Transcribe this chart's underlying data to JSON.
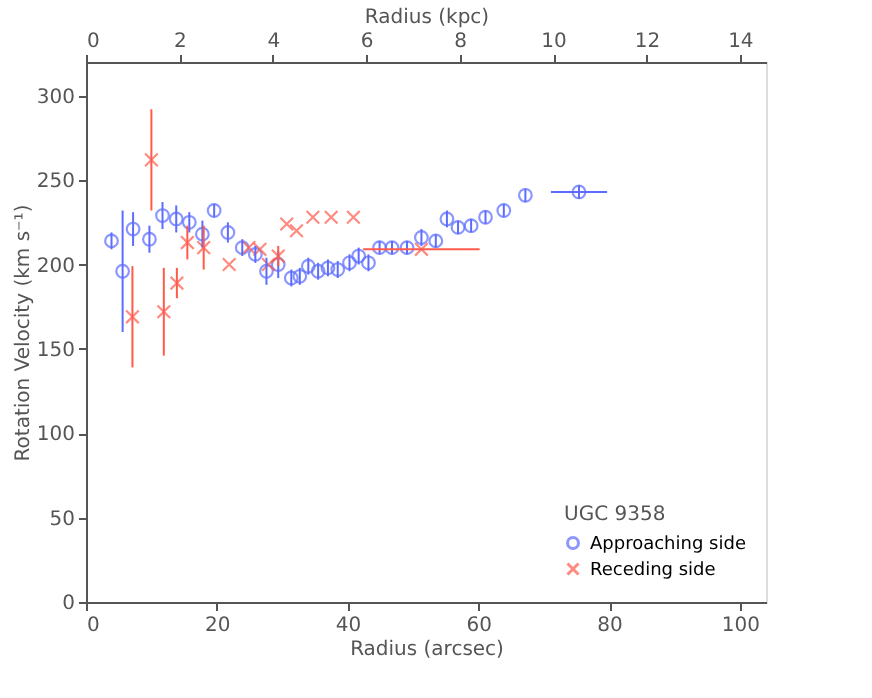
{
  "chart_data": {
    "type": "scatter",
    "xlabel": "Radius (arcsec)",
    "ylabel": "Rotation Velocity (km s⁻¹)",
    "x2label": "Radius (kpc)",
    "legend_title": "UGC 9358",
    "xlim": [
      0,
      104
    ],
    "xticks": [
      0,
      20,
      40,
      60,
      80,
      100
    ],
    "x2lim": [
      0,
      14.56
    ],
    "x2ticks": [
      0,
      2,
      4,
      6,
      8,
      10,
      12,
      14
    ],
    "ylim": [
      0,
      320
    ],
    "yticks": [
      0,
      50,
      100,
      150,
      200,
      250,
      300
    ],
    "grid": false,
    "legend": "bottom right",
    "series": [
      {
        "name": "Approaching side",
        "color": "#5b6cff",
        "marker": "circle",
        "x": [
          3.9,
          5.6,
          7.2,
          9.7,
          11.7,
          13.8,
          15.8,
          17.8,
          19.6,
          21.7,
          23.9,
          25.9,
          27.6,
          29.4,
          31.4,
          32.7,
          34.0,
          35.5,
          37.0,
          38.5,
          40.3,
          41.7,
          43.2,
          44.9,
          46.8,
          49.1,
          51.3,
          53.5,
          55.2,
          56.9,
          58.9,
          61.1,
          63.9,
          67.2,
          75.4
        ],
        "values": [
          214,
          196,
          221,
          215,
          229,
          227,
          225,
          218,
          232,
          219,
          210,
          206,
          196,
          200,
          192,
          193,
          199,
          196,
          198,
          197,
          201,
          205,
          201,
          210,
          210,
          210,
          216,
          214,
          227,
          222,
          223,
          228,
          232,
          241,
          243
        ],
        "errors": [
          5,
          36,
          10,
          8,
          8,
          8,
          6,
          8,
          4,
          6,
          5,
          5,
          8,
          8,
          5,
          5,
          5,
          5,
          5,
          5,
          5,
          5,
          5,
          4,
          4,
          4,
          5,
          4,
          5,
          4,
          4,
          4,
          4,
          4,
          4
        ],
        "xerrors": [
          null,
          null,
          null,
          null,
          null,
          null,
          null,
          null,
          null,
          null,
          null,
          null,
          null,
          null,
          null,
          null,
          null,
          null,
          null,
          null,
          null,
          null,
          null,
          null,
          null,
          null,
          null,
          null,
          null,
          null,
          null,
          null,
          null,
          null,
          4.3
        ]
      },
      {
        "name": "Receding side",
        "color": "#ff5a4a",
        "marker": "cross",
        "x": [
          7.1,
          10.0,
          11.9,
          13.9,
          15.5,
          18.0,
          21.9,
          24.9,
          26.6,
          27.9,
          29.4,
          30.7,
          32.2,
          34.7,
          37.5,
          40.9,
          51.3
        ],
        "values": [
          169,
          262,
          172,
          189,
          213,
          210,
          200,
          210,
          209,
          200,
          205,
          224,
          220,
          228,
          228,
          228,
          209
        ],
        "errors": [
          30,
          30,
          26,
          9,
          10,
          13,
          null,
          null,
          null,
          null,
          6,
          null,
          null,
          null,
          null,
          null,
          null
        ],
        "xerrors": [
          null,
          null,
          null,
          null,
          null,
          null,
          null,
          null,
          null,
          null,
          null,
          null,
          null,
          null,
          null,
          null,
          8.9
        ]
      }
    ]
  }
}
